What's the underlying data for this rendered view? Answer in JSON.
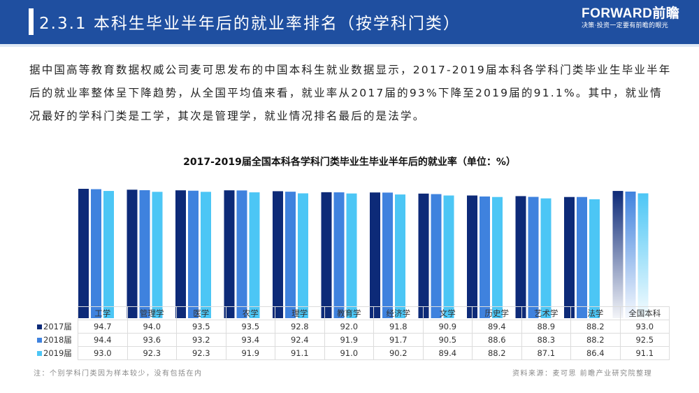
{
  "header": {
    "title": "2.3.1 本科生毕业半年后的就业率排名（按学科门类）",
    "brand_name": "FORWARD前瞻",
    "brand_slogan": "决策·投资一定要有前瞻的眼光",
    "colors": {
      "header_bg": "#1f4fa0",
      "text": "#ffffff"
    }
  },
  "intro": {
    "text": "据中国高等教育数据权威公司麦可思发布的中国本科生就业数据显示，2017-2019届本科各学科门类毕业生毕业半年后的就业率整体呈下降趋势，从全国平均值来看，就业率从2017届的93%下降至2019届的91.1%。其中，就业情况最好的学科门类是工学，其次是管理学，就业情况排名最后的是法学。"
  },
  "chart_data": {
    "type": "bar",
    "title": "2017-2019届全国本科各学科门类毕业生毕业半年后的就业率（单位：%）",
    "xlabel": "",
    "ylabel": "",
    "axis_visible": false,
    "grid": false,
    "legend": "table-left",
    "categories": [
      "工学",
      "管理学",
      "医学",
      "农学",
      "理学",
      "教育学",
      "经济学",
      "文学",
      "历史学",
      "艺术学",
      "法学",
      "全国本科"
    ],
    "series": [
      {
        "name": "2017届",
        "color": "#0d2a78",
        "values": [
          94.7,
          94.0,
          93.5,
          93.5,
          92.8,
          92.0,
          91.8,
          90.9,
          89.4,
          88.9,
          88.2,
          93.0
        ]
      },
      {
        "name": "2018届",
        "color": "#3f82de",
        "values": [
          94.4,
          93.6,
          93.2,
          93.4,
          92.4,
          91.9,
          91.7,
          90.5,
          88.6,
          88.3,
          88.2,
          92.5
        ]
      },
      {
        "name": "2019届",
        "color": "#4cc6f5",
        "values": [
          93.0,
          92.3,
          92.3,
          91.9,
          91.1,
          91.0,
          90.2,
          89.4,
          88.2,
          87.1,
          86.4,
          91.1
        ]
      }
    ],
    "highlight_category": "全国本科"
  },
  "footer": {
    "note": "注：个别学科门类因为样本较少，没有包括在内",
    "source": "资料来源：麦可思 前瞻产业研究院整理"
  }
}
